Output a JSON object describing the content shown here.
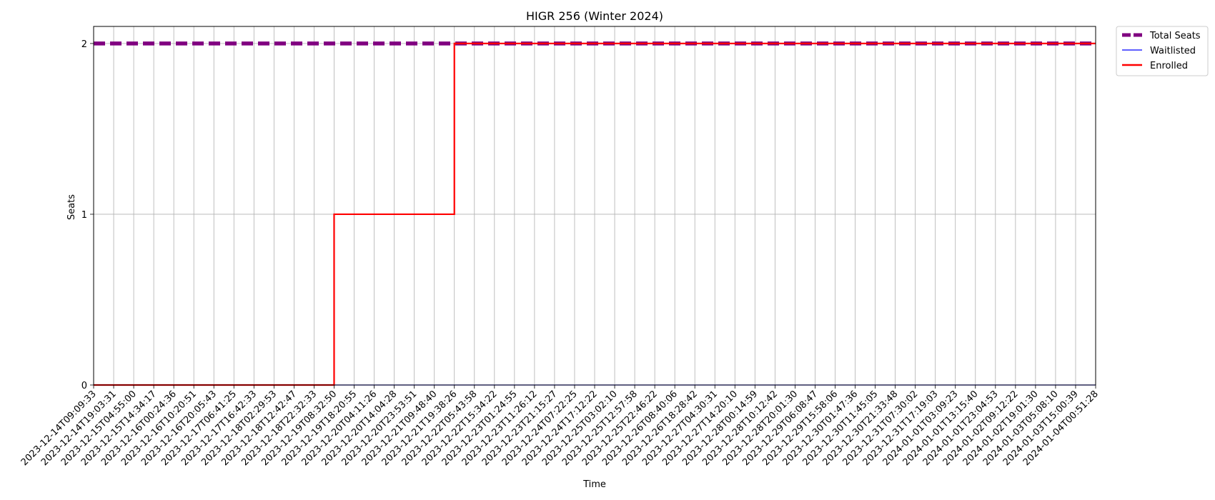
{
  "chart_data": {
    "type": "line",
    "title": "HIGR 256 (Winter 2024)",
    "xlabel": "Time",
    "ylabel": "Seats",
    "ylim": [
      0,
      2.1
    ],
    "yticks": [
      0,
      1,
      2
    ],
    "grid": true,
    "legend_placement": "outside-top-right",
    "categories": [
      "2023-12-14T09:09:33",
      "2023-12-14T19:03:31",
      "2023-12-15T04:55:00",
      "2023-12-15T14:34:17",
      "2023-12-16T00:24:36",
      "2023-12-16T10:20:51",
      "2023-12-16T20:05:43",
      "2023-12-17T06:41:25",
      "2023-12-17T16:42:33",
      "2023-12-18T02:29:53",
      "2023-12-18T12:42:47",
      "2023-12-18T22:32:33",
      "2023-12-19T08:32:50",
      "2023-12-19T18:20:55",
      "2023-12-20T04:11:26",
      "2023-12-20T14:04:28",
      "2023-12-20T23:53:51",
      "2023-12-21T09:48:40",
      "2023-12-21T19:38:26",
      "2023-12-22T05:43:58",
      "2023-12-22T15:34:22",
      "2023-12-23T01:24:55",
      "2023-12-23T11:26:12",
      "2023-12-23T21:15:27",
      "2023-12-24T07:22:25",
      "2023-12-24T17:12:22",
      "2023-12-25T03:02:10",
      "2023-12-25T12:57:58",
      "2023-12-25T22:46:22",
      "2023-12-26T08:40:06",
      "2023-12-26T18:28:42",
      "2023-12-27T04:30:31",
      "2023-12-27T14:20:10",
      "2023-12-28T00:14:59",
      "2023-12-28T10:12:42",
      "2023-12-28T20:01:30",
      "2023-12-29T06:08:47",
      "2023-12-29T15:58:06",
      "2023-12-30T01:47:36",
      "2023-12-30T11:45:05",
      "2023-12-30T21:33:48",
      "2023-12-31T07:30:02",
      "2023-12-31T17:19:03",
      "2024-01-01T03:09:23",
      "2024-01-01T13:15:40",
      "2024-01-01T23:04:53",
      "2024-01-02T09:12:22",
      "2024-01-02T19:01:30",
      "2024-01-03T05:08:10",
      "2024-01-03T15:00:39",
      "2024-01-04T00:51:28"
    ],
    "series": [
      {
        "name": "Total Seats",
        "color": "#800080",
        "style": "dashed",
        "values": [
          2,
          2,
          2,
          2,
          2,
          2,
          2,
          2,
          2,
          2,
          2,
          2,
          2,
          2,
          2,
          2,
          2,
          2,
          2,
          2,
          2,
          2,
          2,
          2,
          2,
          2,
          2,
          2,
          2,
          2,
          2,
          2,
          2,
          2,
          2,
          2,
          2,
          2,
          2,
          2,
          2,
          2,
          2,
          2,
          2,
          2,
          2,
          2,
          2,
          2,
          2
        ]
      },
      {
        "name": "Waitlisted",
        "color": "#0000ff",
        "style": "solid",
        "values": [
          0,
          0,
          0,
          0,
          0,
          0,
          0,
          0,
          0,
          0,
          0,
          0,
          0,
          0,
          0,
          0,
          0,
          0,
          0,
          0,
          0,
          0,
          0,
          0,
          0,
          0,
          0,
          0,
          0,
          0,
          0,
          0,
          0,
          0,
          0,
          0,
          0,
          0,
          0,
          0,
          0,
          0,
          0,
          0,
          0,
          0,
          0,
          0,
          0,
          0,
          0
        ]
      },
      {
        "name": "Enrolled",
        "color": "#ff0000",
        "style": "step",
        "values": [
          0,
          0,
          0,
          0,
          0,
          0,
          0,
          0,
          0,
          0,
          0,
          0,
          1,
          1,
          1,
          1,
          1,
          1,
          2,
          2,
          2,
          2,
          2,
          2,
          2,
          2,
          2,
          2,
          2,
          2,
          2,
          2,
          2,
          2,
          2,
          2,
          2,
          2,
          2,
          2,
          2,
          2,
          2,
          2,
          2,
          2,
          2,
          2,
          2,
          2,
          2
        ]
      }
    ]
  }
}
